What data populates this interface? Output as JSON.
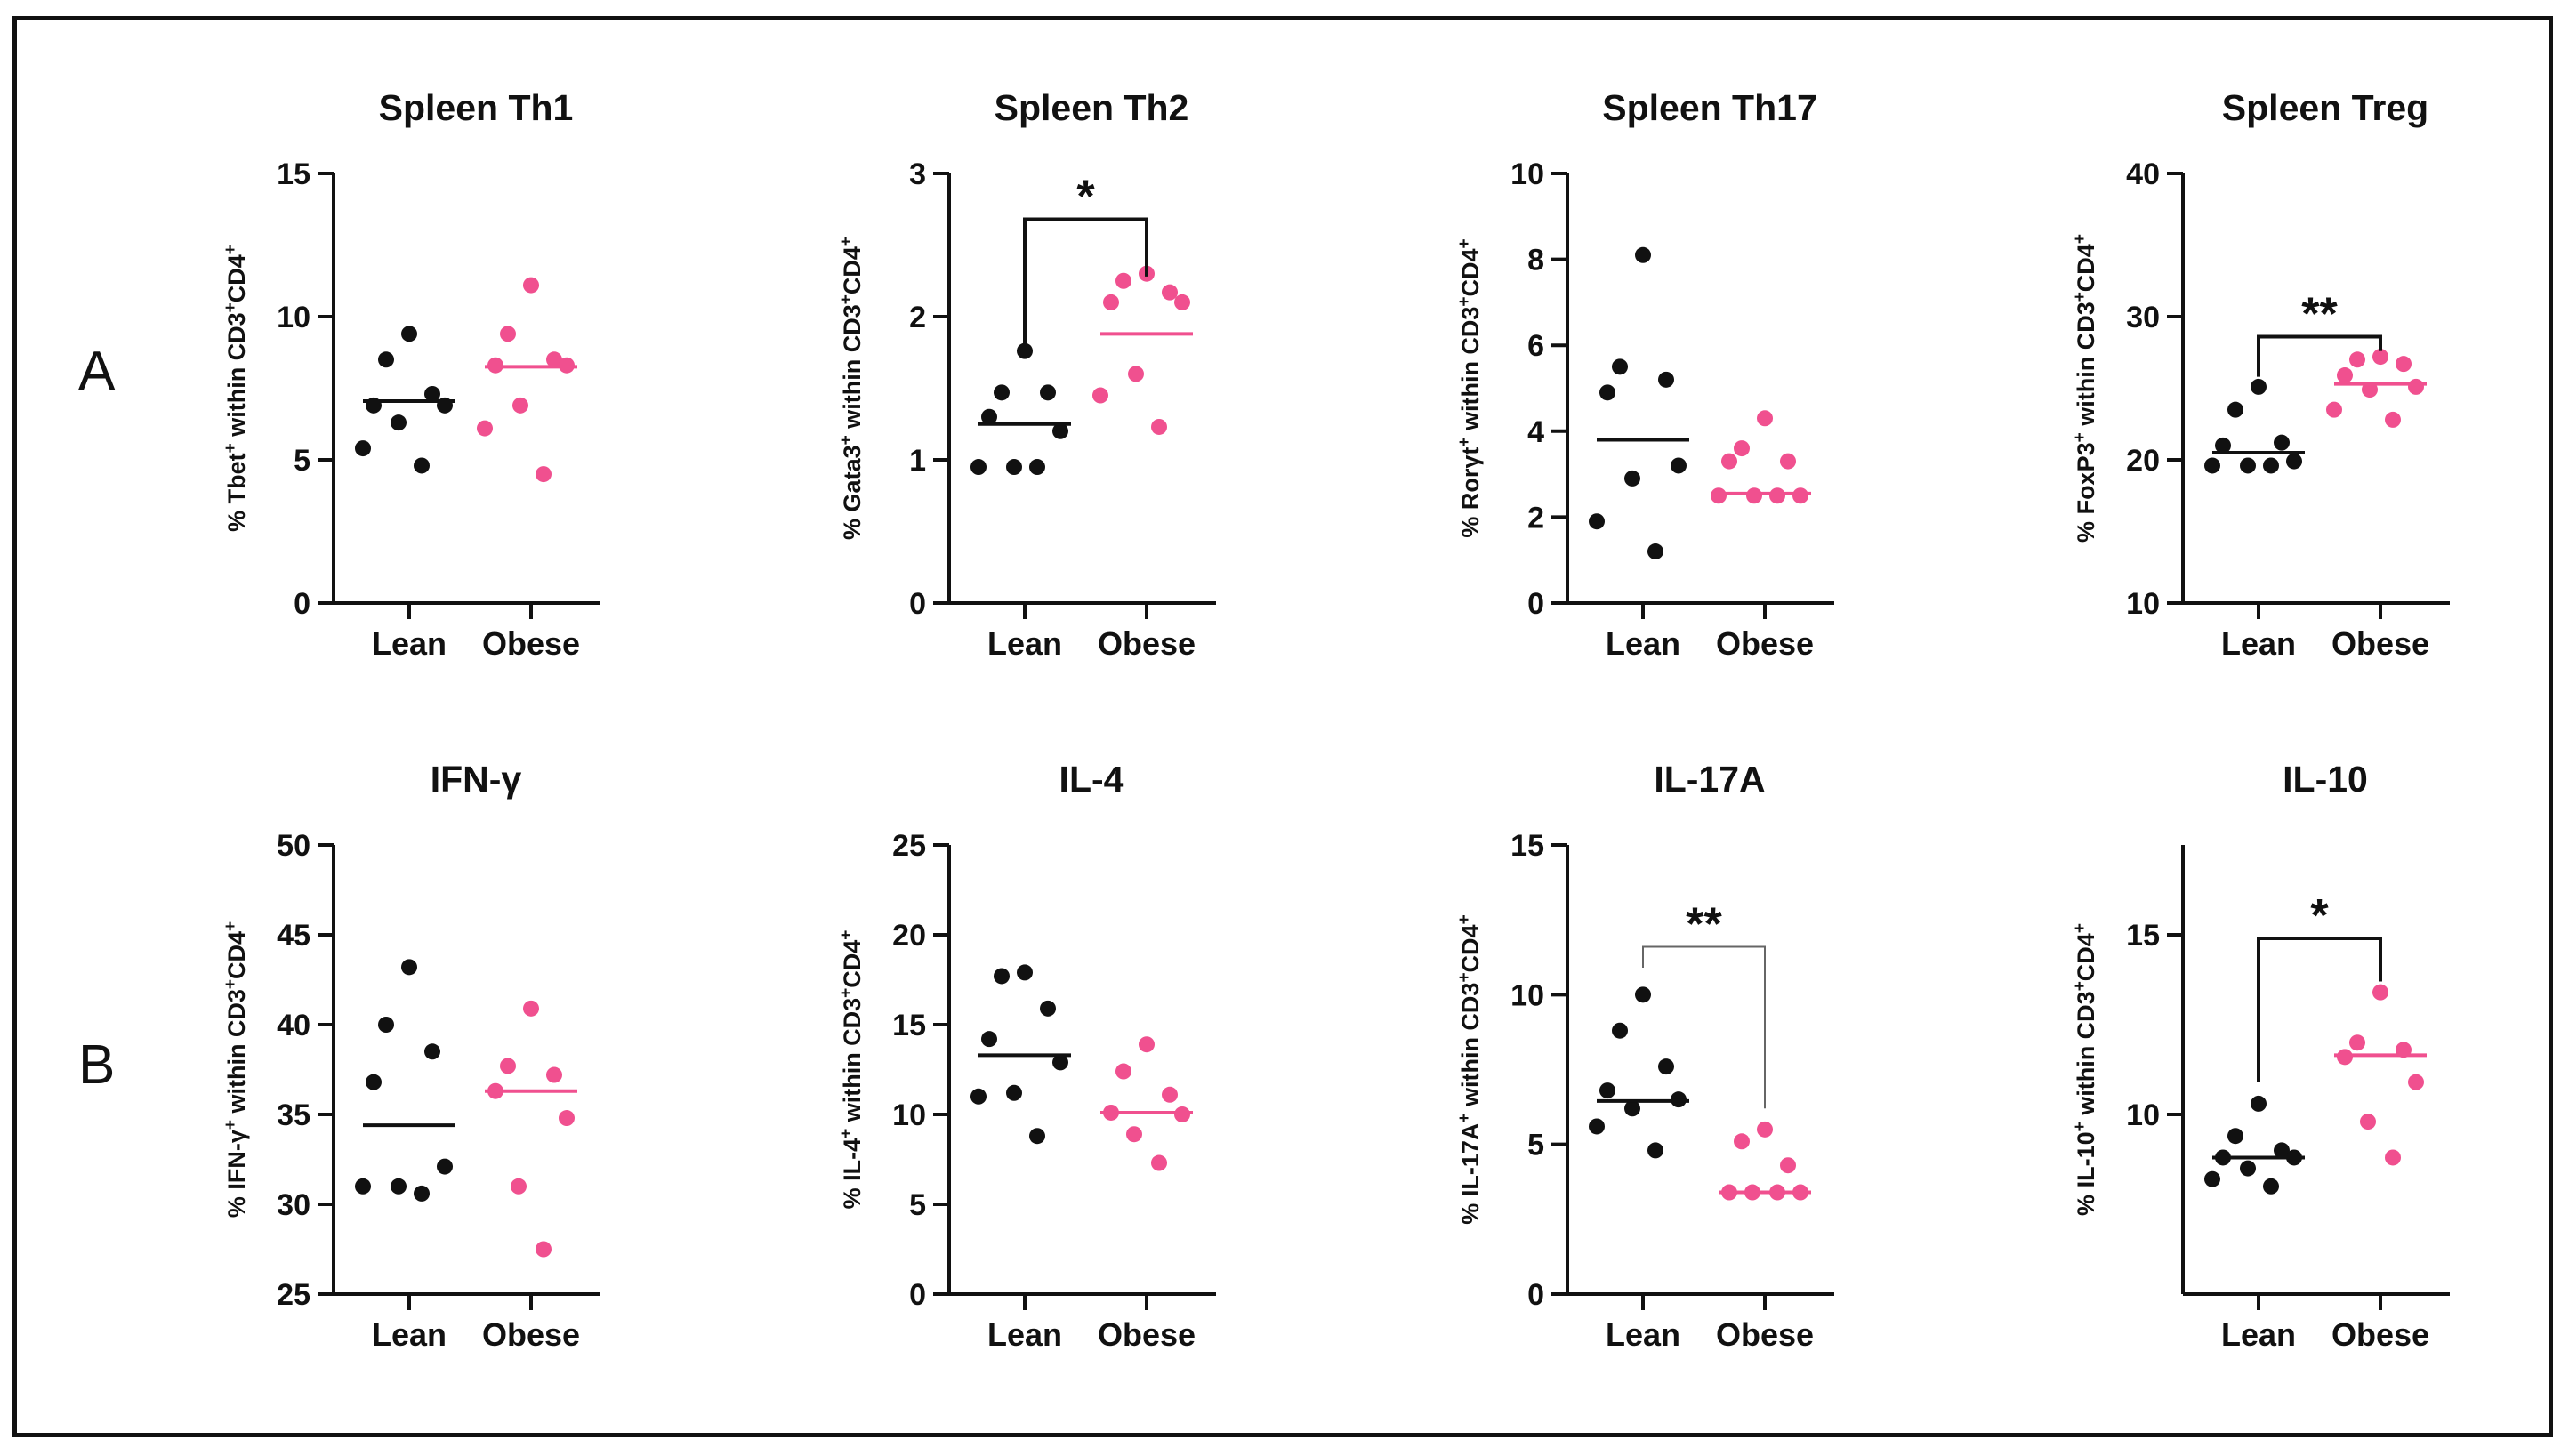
{
  "colors": {
    "lean": "#111111",
    "obese": "#f0508f",
    "axis": "#111111",
    "bracket_light": "#666666"
  },
  "row_labels": [
    "A",
    "B"
  ],
  "chart_data": [
    {
      "type": "scatter",
      "title": "Spleen Th1",
      "ylabel_parts": [
        {
          "t": "% Tbet"
        },
        {
          "t": "+",
          "sup": true
        },
        {
          "t": " within CD3"
        },
        {
          "t": "+",
          "sup": true
        },
        {
          "t": "CD4"
        },
        {
          "t": "+",
          "sup": true
        }
      ],
      "categories": [
        "Lean",
        "Obese"
      ],
      "ylim": [
        0,
        15
      ],
      "yticks": [
        0,
        5,
        10,
        15
      ],
      "ytick_labels": [
        "0",
        "5",
        "10",
        "15"
      ],
      "series": [
        {
          "name": "Lean",
          "values": [
            9.4,
            8.5,
            7.3,
            6.9,
            6.9,
            6.3,
            5.4,
            4.8
          ],
          "mean": 7.05
        },
        {
          "name": "Obese",
          "values": [
            11.1,
            9.4,
            8.5,
            8.3,
            8.3,
            6.9,
            6.1,
            4.5
          ],
          "mean": 8.25
        }
      ],
      "significance": null
    },
    {
      "type": "scatter",
      "title": "Spleen Th2",
      "ylabel_parts": [
        {
          "t": "% Gata3"
        },
        {
          "t": "+",
          "sup": true
        },
        {
          "t": " within CD3"
        },
        {
          "t": "+",
          "sup": true
        },
        {
          "t": "CD4"
        },
        {
          "t": "+",
          "sup": true
        }
      ],
      "categories": [
        "Lean",
        "Obese"
      ],
      "ylim": [
        0,
        3
      ],
      "yticks": [
        0,
        1,
        2,
        3
      ],
      "ytick_labels": [
        "0",
        "1",
        "2",
        "3"
      ],
      "series": [
        {
          "name": "Lean",
          "values": [
            1.76,
            1.47,
            1.47,
            1.3,
            1.2,
            0.95,
            0.95,
            0.95
          ],
          "mean": 1.25
        },
        {
          "name": "Obese",
          "values": [
            2.3,
            2.25,
            2.17,
            2.1,
            2.1,
            1.6,
            1.45,
            1.23
          ],
          "mean": 1.88
        }
      ],
      "significance": {
        "label": "*",
        "style": "bold",
        "top": 2.68,
        "left_end": 1.8,
        "right_end": 2.28
      }
    },
    {
      "type": "scatter",
      "title": "Spleen Th17",
      "ylabel_parts": [
        {
          "t": "% Rorγt"
        },
        {
          "t": "+",
          "sup": true
        },
        {
          "t": " within CD3"
        },
        {
          "t": "+",
          "sup": true
        },
        {
          "t": "CD4"
        },
        {
          "t": "+",
          "sup": true
        }
      ],
      "categories": [
        "Lean",
        "Obese"
      ],
      "ylim": [
        0,
        10
      ],
      "yticks": [
        0,
        2,
        4,
        6,
        8,
        10
      ],
      "ytick_labels": [
        "0",
        "2",
        "4",
        "6",
        "8",
        "10"
      ],
      "series": [
        {
          "name": "Lean",
          "values": [
            8.1,
            5.5,
            5.2,
            4.9,
            3.2,
            2.9,
            1.9,
            1.2
          ],
          "mean": 3.8
        },
        {
          "name": "Obese",
          "values": [
            4.3,
            3.6,
            3.3,
            3.3,
            2.5,
            2.5,
            2.5,
            2.5
          ],
          "mean": 2.55
        }
      ],
      "significance": null
    },
    {
      "type": "scatter",
      "title": "Spleen Treg",
      "ylabel_parts": [
        {
          "t": "% FoxP3"
        },
        {
          "t": "+",
          "sup": true
        },
        {
          "t": " within CD3"
        },
        {
          "t": "+",
          "sup": true
        },
        {
          "t": "CD4"
        },
        {
          "t": "+",
          "sup": true
        }
      ],
      "categories": [
        "Lean",
        "Obese"
      ],
      "ylim": [
        10,
        40
      ],
      "yticks": [
        10,
        20,
        30,
        40
      ],
      "ytick_labels": [
        "10",
        "20",
        "30",
        "40"
      ],
      "series": [
        {
          "name": "Lean",
          "values": [
            25.1,
            23.5,
            21.2,
            21.0,
            19.9,
            19.6,
            19.6,
            19.6
          ],
          "mean": 20.5
        },
        {
          "name": "Obese",
          "values": [
            27.2,
            27.0,
            26.7,
            25.9,
            25.1,
            24.9,
            23.5,
            22.8
          ],
          "mean": 25.3
        },
        null
      ],
      "significance": {
        "label": "**",
        "style": "bold",
        "top": 28.6,
        "left_end": 25.8,
        "right_end": 27.6
      }
    },
    {
      "type": "scatter",
      "title": "IFN-γ",
      "ylabel_parts": [
        {
          "t": "% IFN-γ"
        },
        {
          "t": "+",
          "sup": true
        },
        {
          "t": " within CD3"
        },
        {
          "t": "+",
          "sup": true
        },
        {
          "t": "CD4"
        },
        {
          "t": "+",
          "sup": true
        }
      ],
      "categories": [
        "Lean",
        "Obese"
      ],
      "ylim": [
        25,
        50
      ],
      "yticks": [
        25,
        30,
        35,
        40,
        45,
        50
      ],
      "ytick_labels": [
        "25",
        "30",
        "35",
        "40",
        "45",
        "50"
      ],
      "series": [
        {
          "name": "Lean",
          "values": [
            43.2,
            40.0,
            38.5,
            36.8,
            32.1,
            31.0,
            31.0,
            30.6
          ],
          "mean": 34.4
        },
        {
          "name": "Obese",
          "values": [
            40.9,
            37.7,
            37.2,
            36.3,
            34.8,
            31.0,
            27.5
          ],
          "mean": 36.3
        }
      ],
      "significance": null
    },
    {
      "type": "scatter",
      "title": "IL-4",
      "ylabel_parts": [
        {
          "t": "% IL-4"
        },
        {
          "t": "+",
          "sup": true
        },
        {
          "t": " within CD3"
        },
        {
          "t": "+",
          "sup": true
        },
        {
          "t": "CD4"
        },
        {
          "t": "+",
          "sup": true
        }
      ],
      "categories": [
        "Lean",
        "Obese"
      ],
      "ylim": [
        0,
        25
      ],
      "yticks": [
        0,
        5,
        10,
        15,
        20,
        25
      ],
      "ytick_labels": [
        "0",
        "5",
        "10",
        "15",
        "20",
        "25"
      ],
      "series": [
        {
          "name": "Lean",
          "values": [
            17.9,
            17.7,
            15.9,
            14.2,
            12.9,
            11.2,
            11.0,
            8.8
          ],
          "mean": 13.3
        },
        {
          "name": "Obese",
          "values": [
            13.9,
            12.4,
            11.1,
            10.1,
            10.0,
            8.9,
            7.3
          ],
          "mean": 10.1
        }
      ],
      "significance": null
    },
    {
      "type": "scatter",
      "title": "IL-17A",
      "ylabel_parts": [
        {
          "t": "% IL-17A"
        },
        {
          "t": "+",
          "sup": true
        },
        {
          "t": " within CD3"
        },
        {
          "t": "+",
          "sup": true
        },
        {
          "t": "CD4"
        },
        {
          "t": "+",
          "sup": true
        }
      ],
      "categories": [
        "Lean",
        "Obese"
      ],
      "ylim": [
        0,
        15
      ],
      "yticks": [
        0,
        5,
        10,
        15
      ],
      "ytick_labels": [
        "0",
        "5",
        "10",
        "15"
      ],
      "series": [
        {
          "name": "Lean",
          "values": [
            10.0,
            8.8,
            7.6,
            6.8,
            6.5,
            6.2,
            5.6,
            4.8
          ],
          "mean": 6.45
        },
        {
          "name": "Obese",
          "values": [
            5.5,
            5.1,
            4.3,
            3.4,
            3.4,
            3.4,
            3.4
          ],
          "mean": 3.4
        }
      ],
      "significance": {
        "label": "**",
        "style": "light",
        "top": 11.6,
        "left_end": 10.9,
        "right_end": 6.2
      }
    },
    {
      "type": "scatter",
      "title": "IL-10",
      "ylabel_parts": [
        {
          "t": "% IL-10"
        },
        {
          "t": "+",
          "sup": true
        },
        {
          "t": " within CD3"
        },
        {
          "t": "+",
          "sup": true
        },
        {
          "t": "CD4"
        },
        {
          "t": "+",
          "sup": true
        }
      ],
      "categories": [
        "Lean",
        "Obese"
      ],
      "ylim": [
        5,
        17.5
      ],
      "yticks": [
        10,
        15
      ],
      "ytick_labels": [
        "10",
        "15"
      ],
      "series": [
        {
          "name": "Lean",
          "values": [
            10.3,
            9.4,
            9.0,
            8.8,
            8.8,
            8.5,
            8.2,
            8.0
          ],
          "mean": 8.8
        },
        {
          "name": "Obese",
          "values": [
            13.4,
            12.0,
            11.8,
            11.6,
            10.9,
            9.8,
            8.8
          ],
          "mean": 11.65
        }
      ],
      "significance": {
        "label": "*",
        "style": "bold",
        "top": 14.9,
        "left_end": 10.9,
        "right_end": 13.7
      }
    }
  ]
}
